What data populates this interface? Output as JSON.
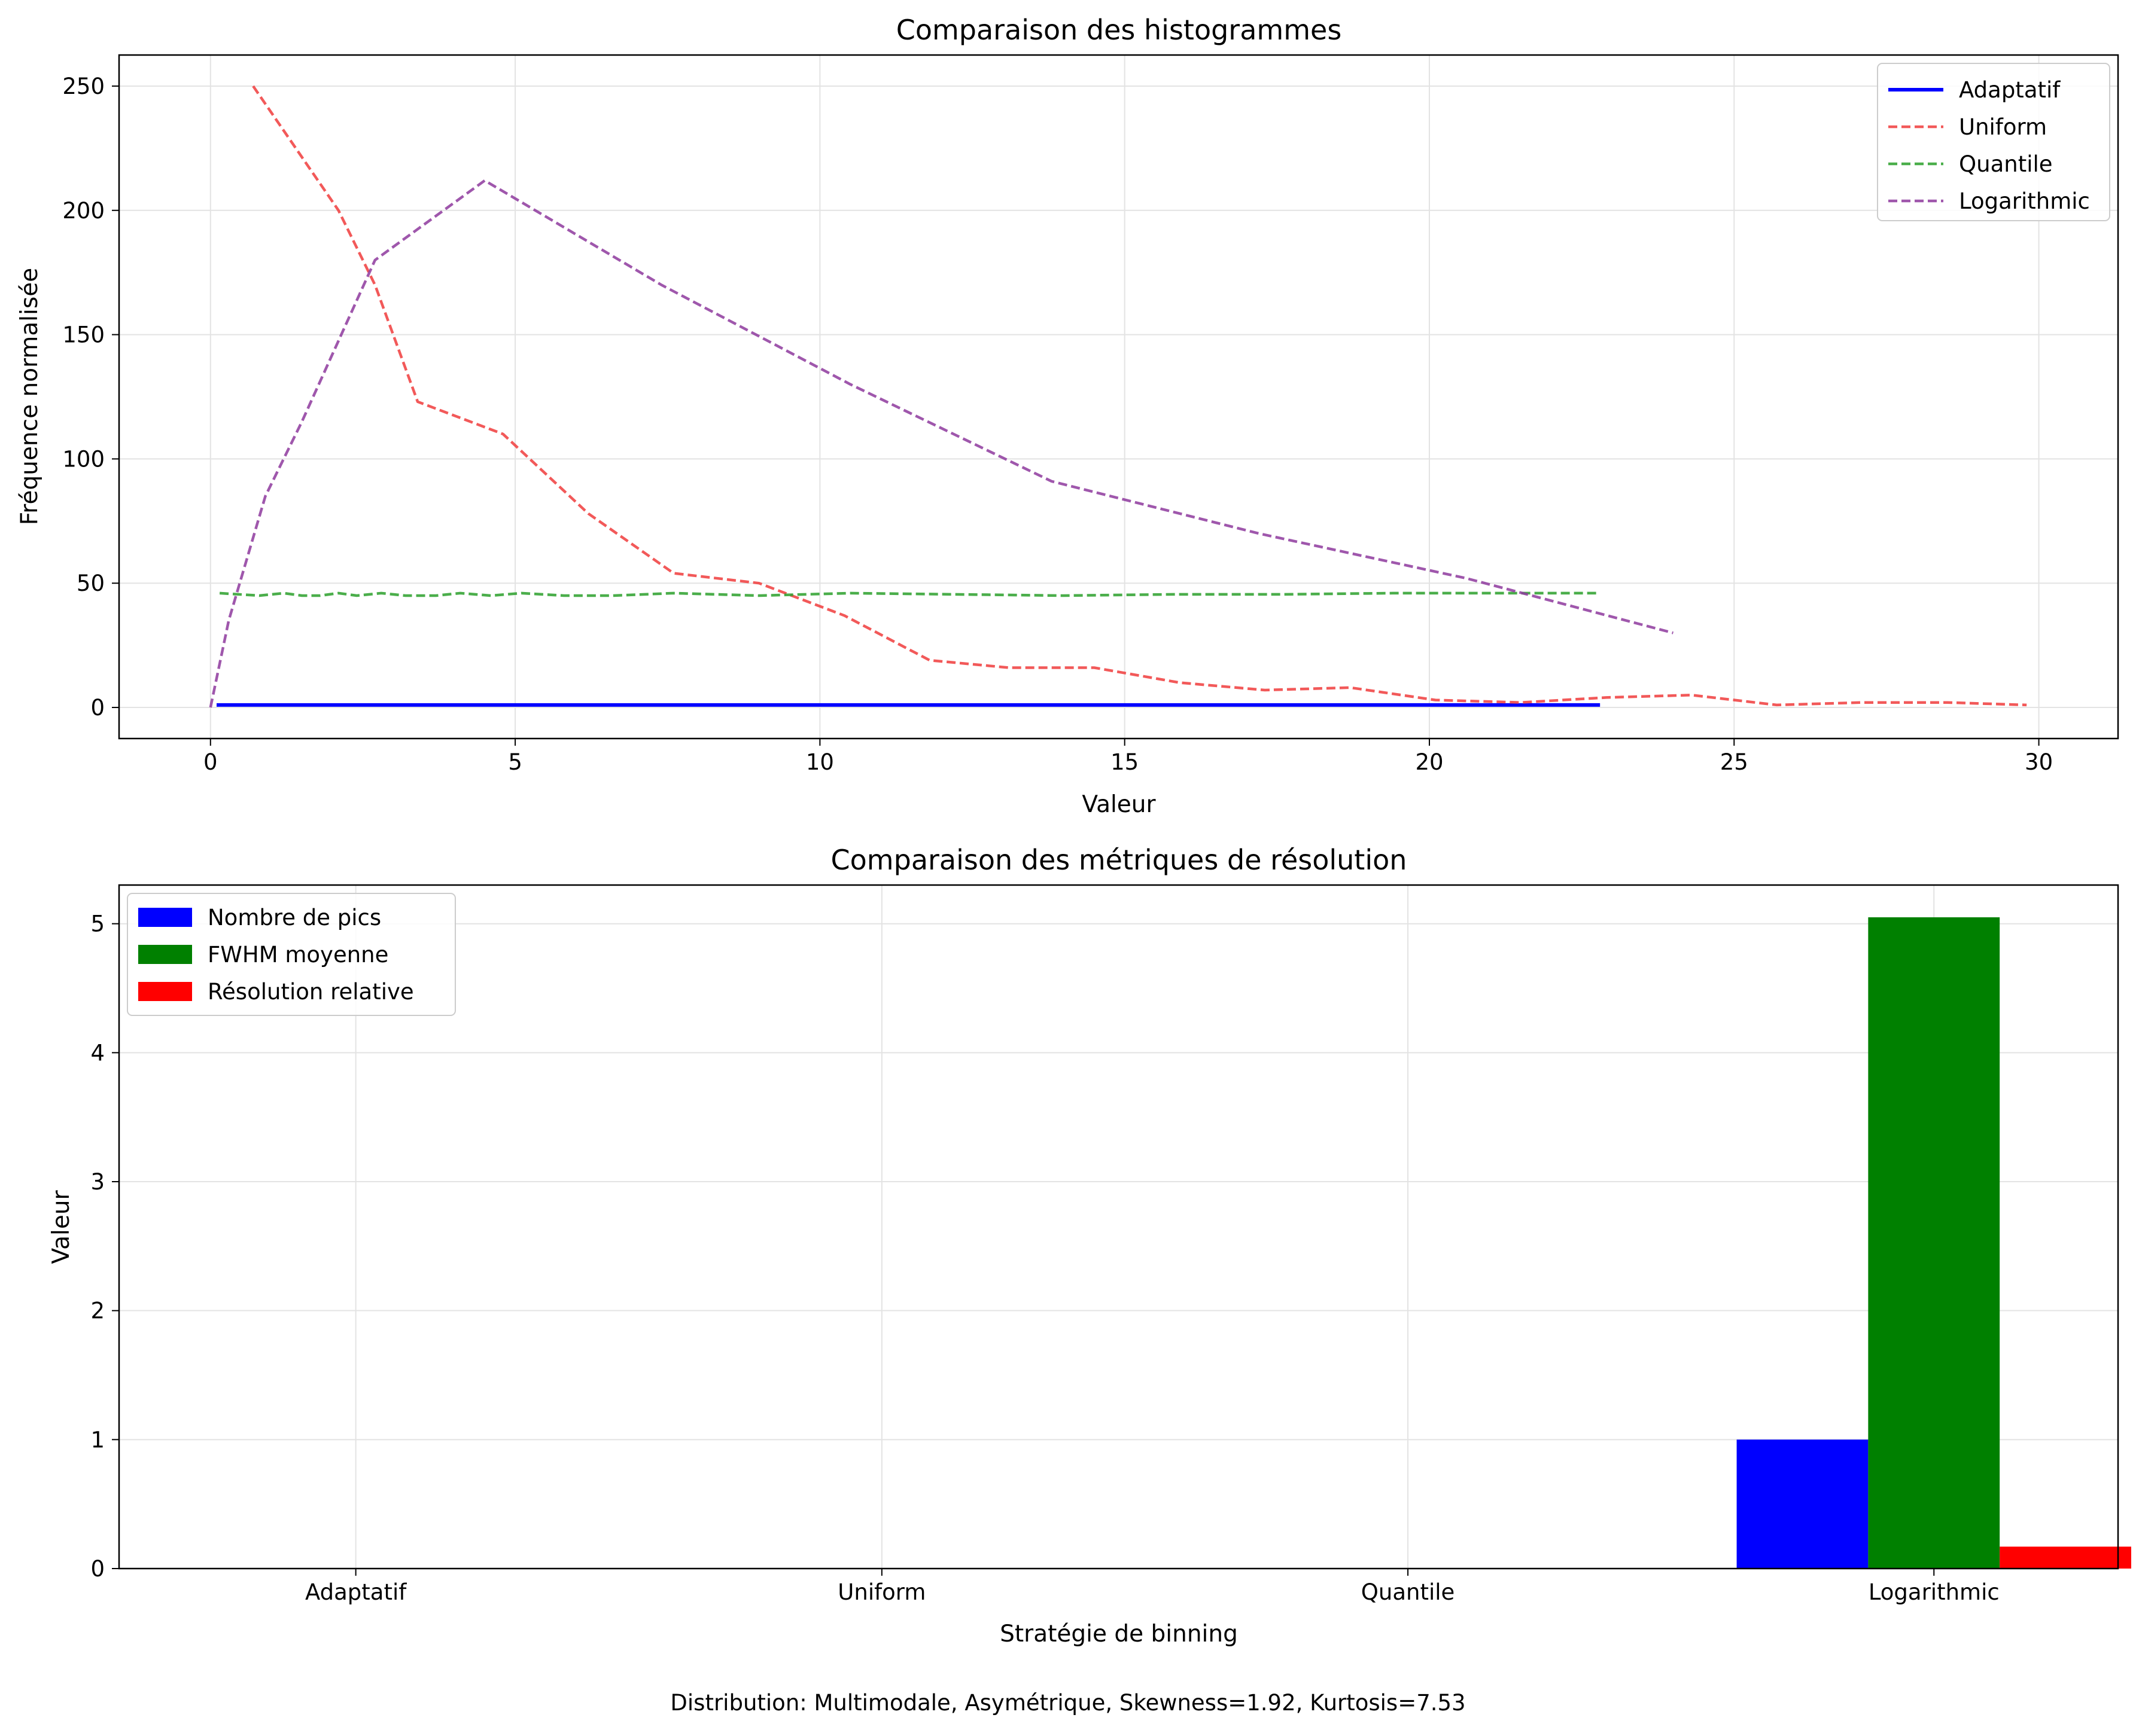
{
  "chart_data": [
    {
      "type": "line",
      "title": "Comparaison des histogrammes",
      "xlabel": "Valeur",
      "ylabel": "Fréquence normalisée",
      "xlim": [
        -1.5,
        31.3
      ],
      "ylim": [
        -12.5,
        262.5
      ],
      "xticks": [
        0,
        5,
        10,
        15,
        20,
        25,
        30
      ],
      "yticks": [
        0,
        50,
        100,
        150,
        200,
        250
      ],
      "grid": true,
      "legend_position": "top-right",
      "series": [
        {
          "name": "Adaptatif",
          "color": "#0000ff",
          "style": "solid",
          "x": [
            0.1,
            22.8
          ],
          "y": [
            1,
            1
          ]
        },
        {
          "name": "Uniform",
          "color": "#f03c3c",
          "style": "dashed",
          "x": [
            0.7,
            2.1,
            2.7,
            3.4,
            4.8,
            6.2,
            7.6,
            9.0,
            10.4,
            11.8,
            13.1,
            14.5,
            15.9,
            17.3,
            18.7,
            20.1,
            21.5,
            22.9,
            24.3,
            25.7,
            27.1,
            28.5,
            29.8
          ],
          "y": [
            250,
            200,
            170,
            123,
            110,
            78,
            54,
            50,
            37,
            19,
            16,
            16,
            10,
            7,
            8,
            3,
            2,
            4,
            5,
            1,
            2,
            2,
            1
          ]
        },
        {
          "name": "Quantile",
          "color": "#2ca02c",
          "style": "dashed",
          "x": [
            0.15,
            0.8,
            1.2,
            1.5,
            1.8,
            2.1,
            2.4,
            2.8,
            3.2,
            3.7,
            4.1,
            4.6,
            5.1,
            5.8,
            6.6,
            7.6,
            9.0,
            10.5,
            12.2,
            14.0,
            15.8,
            17.6,
            19.4,
            21.2,
            22.8
          ],
          "y": [
            46,
            45,
            46,
            45,
            45,
            46,
            45,
            46,
            45,
            45,
            46,
            45,
            46,
            45,
            45,
            46,
            45,
            46,
            45.5,
            45,
            45.5,
            45.5,
            46,
            46,
            46
          ]
        },
        {
          "name": "Logarithmic",
          "color": "#8e3a9e",
          "style": "dashed",
          "x": [
            0.0,
            0.3,
            0.9,
            1.5,
            2.7,
            4.5,
            7.4,
            10.5,
            13.8,
            17.2,
            20.6,
            24.0
          ],
          "y": [
            0,
            35,
            85,
            115,
            180,
            212,
            170,
            130,
            91,
            70,
            52,
            30
          ]
        }
      ]
    },
    {
      "type": "bar",
      "title": "Comparaison des métriques de résolution",
      "xlabel": "Stratégie de binning",
      "ylabel": "Valeur",
      "categories": [
        "Adaptatif",
        "Uniform",
        "Quantile",
        "Logarithmic"
      ],
      "ylim": [
        0,
        5.3
      ],
      "yticks": [
        0,
        1,
        2,
        3,
        4,
        5
      ],
      "grid": true,
      "legend_position": "top-left",
      "series": [
        {
          "name": "Nombre de pics",
          "color": "#0000ff",
          "values": [
            0,
            0,
            0,
            1
          ]
        },
        {
          "name": "FWHM moyenne",
          "color": "#008000",
          "values": [
            0,
            0,
            0,
            5.05
          ]
        },
        {
          "name": "Résolution relative",
          "color": "#ff0000",
          "values": [
            0,
            0,
            0,
            0.17
          ]
        }
      ]
    }
  ],
  "caption": "Distribution: Multimodale, Asymétrique, Skewness=1.92, Kurtosis=7.53"
}
